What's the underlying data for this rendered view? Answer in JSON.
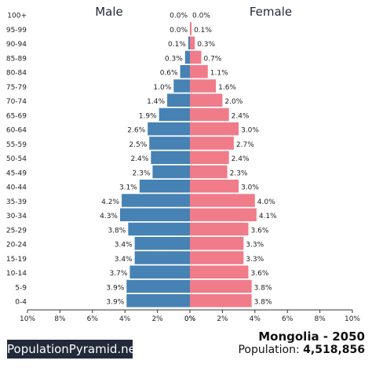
{
  "chart_data": {
    "type": "bar",
    "title": "",
    "side_headers": {
      "left": "Male",
      "right": "Female"
    },
    "categories": [
      "100+",
      "95-99",
      "90-94",
      "85-89",
      "80-84",
      "75-79",
      "70-74",
      "65-69",
      "60-64",
      "55-59",
      "50-54",
      "45-49",
      "40-44",
      "35-39",
      "30-34",
      "25-29",
      "20-24",
      "15-19",
      "10-14",
      "5-9",
      "0-4"
    ],
    "series": [
      {
        "name": "Male",
        "color": "#4682b4",
        "values": [
          0.0,
          0.0,
          0.1,
          0.3,
          0.6,
          1.0,
          1.4,
          1.9,
          2.6,
          2.5,
          2.4,
          2.3,
          3.1,
          4.2,
          4.3,
          3.8,
          3.4,
          3.4,
          3.7,
          3.9,
          3.9
        ],
        "labels": [
          "0.0%",
          "0.0%",
          "0.1%",
          "0.3%",
          "0.6%",
          "1.0%",
          "1.4%",
          "1.9%",
          "2.6%",
          "2.5%",
          "2.4%",
          "2.3%",
          "3.1%",
          "4.2%",
          "4.3%",
          "3.8%",
          "3.4%",
          "3.4%",
          "3.7%",
          "3.9%",
          "3.9%"
        ]
      },
      {
        "name": "Female",
        "color": "#f07c8a",
        "values": [
          0.0,
          0.1,
          0.3,
          0.7,
          1.1,
          1.6,
          2.0,
          2.4,
          3.0,
          2.7,
          2.4,
          2.3,
          3.0,
          4.0,
          4.1,
          3.6,
          3.3,
          3.3,
          3.6,
          3.8,
          3.8
        ],
        "labels": [
          "0.0%",
          "0.1%",
          "0.3%",
          "0.7%",
          "1.1%",
          "1.6%",
          "2.0%",
          "2.4%",
          "3.0%",
          "2.7%",
          "2.4%",
          "2.3%",
          "3.0%",
          "4.0%",
          "4.1%",
          "3.6%",
          "3.3%",
          "3.3%",
          "3.6%",
          "3.8%",
          "3.8%"
        ]
      }
    ],
    "xlim": [
      0,
      10
    ],
    "x_ticks_male": [
      "10%",
      "8%",
      "6%",
      "4%",
      "2%",
      "0%"
    ],
    "x_ticks_female": [
      "0%",
      "2%",
      "4%",
      "6%",
      "8%",
      "10%"
    ],
    "grid": false
  },
  "footer": {
    "site": "PopulationPyramid.net",
    "country_year": "Mongolia - 2050",
    "population_label": "Population: ",
    "population_value": "4,518,856"
  }
}
